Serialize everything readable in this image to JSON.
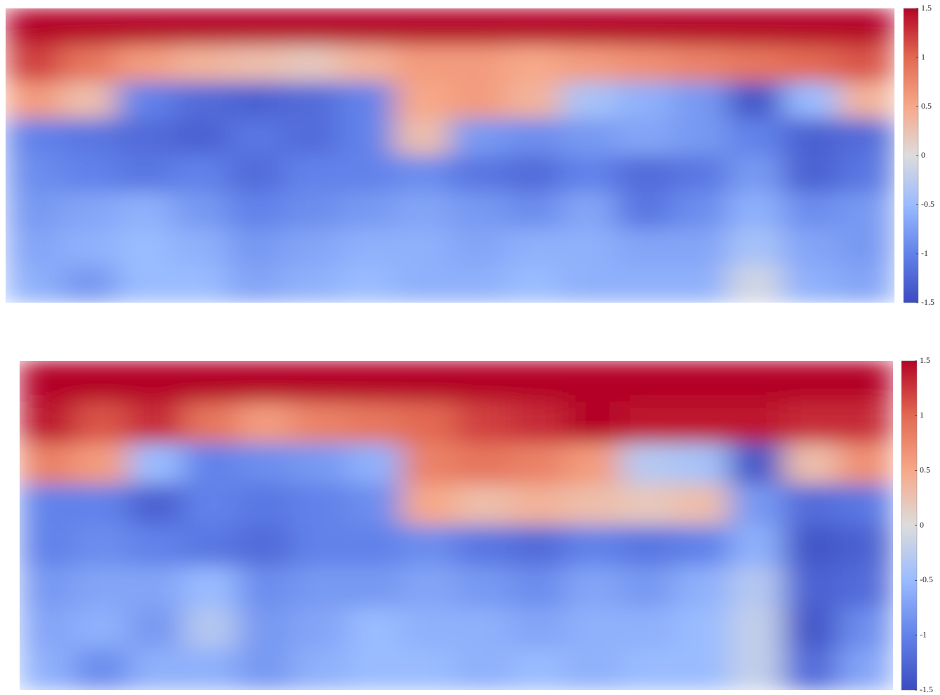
{
  "chart_data": [
    {
      "type": "heatmap",
      "zlim": [
        -1.5,
        1.5
      ],
      "zticks": [
        1.5,
        1,
        0.5,
        0,
        -0.5,
        -1,
        -1.5
      ],
      "colormap": [
        "#3b4cc0",
        "#6282ea",
        "#9abbff",
        "#dddcdc",
        "#f7a889",
        "#e26952",
        "#b40426"
      ],
      "z": [
        [
          1.5,
          1.5,
          1.5,
          1.5,
          1.5,
          1.5,
          1.5,
          1.5,
          1.5,
          1.5,
          1.5,
          1.5,
          1.5,
          1.5,
          1.5,
          1.5
        ],
        [
          1.2,
          0.9,
          0.6,
          0.4,
          0.3,
          0.2,
          0.4,
          0.6,
          0.6,
          0.5,
          0.6,
          0.7,
          0.8,
          0.9,
          1.0,
          1.1
        ],
        [
          0.6,
          0.3,
          -1.0,
          -1.2,
          -1.3,
          -1.2,
          -1.0,
          0.5,
          0.6,
          0.4,
          -0.4,
          -0.6,
          -0.8,
          -1.4,
          -0.5,
          0.4
        ],
        [
          -1.0,
          -1.1,
          -1.2,
          -1.3,
          -1.1,
          -1.2,
          -1.0,
          0.3,
          -0.8,
          -0.9,
          -0.8,
          -0.7,
          -0.8,
          -1.0,
          -1.3,
          -1.2
        ],
        [
          -0.9,
          -1.0,
          -1.1,
          -1.0,
          -1.2,
          -1.0,
          -1.0,
          -0.9,
          -1.1,
          -1.2,
          -1.0,
          -1.2,
          -1.1,
          -0.8,
          -1.3,
          -1.1
        ],
        [
          -0.8,
          -0.7,
          -0.6,
          -0.8,
          -1.0,
          -0.9,
          -0.8,
          -0.7,
          -0.8,
          -0.9,
          -0.7,
          -1.1,
          -0.9,
          -0.6,
          -0.9,
          -0.8
        ],
        [
          -0.7,
          -0.6,
          -0.5,
          -0.6,
          -0.8,
          -0.7,
          -0.6,
          -0.6,
          -0.7,
          -0.6,
          -0.6,
          -0.7,
          -0.7,
          -0.4,
          -0.7,
          -0.8
        ],
        [
          -0.6,
          -0.8,
          -0.5,
          -0.5,
          -0.7,
          -0.6,
          -0.5,
          -0.6,
          -0.6,
          -0.5,
          -0.6,
          -0.6,
          -0.6,
          -0.1,
          -0.6,
          -0.7
        ]
      ]
    },
    {
      "type": "heatmap",
      "zlim": [
        -1.5,
        1.5
      ],
      "zticks": [
        1.5,
        1,
        0.5,
        0,
        -0.5,
        -1,
        -1.5
      ],
      "colormap": [
        "#3b4cc0",
        "#6282ea",
        "#9abbff",
        "#dddcdc",
        "#f7a889",
        "#e26952",
        "#b40426"
      ],
      "z": [
        [
          1.5,
          1.5,
          1.5,
          1.5,
          1.5,
          1.5,
          1.5,
          1.5,
          1.5,
          1.5,
          1.5,
          1.5,
          1.5,
          1.5,
          1.5,
          1.5
        ],
        [
          1.4,
          1.1,
          1.3,
          0.9,
          0.6,
          0.8,
          0.9,
          1.0,
          1.2,
          1.3,
          1.5,
          1.4,
          1.4,
          1.4,
          1.3,
          1.3
        ],
        [
          0.8,
          0.6,
          -0.5,
          -1.0,
          -0.9,
          -0.8,
          -0.6,
          0.8,
          0.9,
          0.8,
          0.6,
          -0.3,
          -0.4,
          -1.4,
          0.3,
          0.7
        ],
        [
          -1.0,
          -1.0,
          -1.3,
          -1.0,
          -1.1,
          -1.0,
          -0.9,
          0.5,
          0.3,
          0.4,
          0.3,
          0.2,
          0.3,
          -0.8,
          -1.2,
          -1.1
        ],
        [
          -1.0,
          -0.9,
          -1.0,
          -1.1,
          -1.2,
          -1.0,
          -1.0,
          -0.9,
          -1.1,
          -1.2,
          -1.0,
          -1.1,
          -1.0,
          -0.6,
          -1.4,
          -1.3
        ],
        [
          -0.8,
          -0.7,
          -0.7,
          -0.5,
          -0.9,
          -0.8,
          -0.8,
          -0.7,
          -0.8,
          -0.9,
          -0.7,
          -0.8,
          -0.6,
          -0.3,
          -1.3,
          -1.2
        ],
        [
          -0.7,
          -0.6,
          -0.8,
          -0.3,
          -0.8,
          -0.7,
          -0.5,
          -0.6,
          -0.6,
          -0.7,
          -0.6,
          -0.6,
          -0.5,
          -0.2,
          -1.4,
          -0.9
        ],
        [
          -0.6,
          -0.9,
          -0.6,
          -0.6,
          -0.8,
          -0.6,
          -0.5,
          -0.5,
          -0.6,
          -0.5,
          -0.6,
          -0.5,
          -0.5,
          -0.2,
          -1.2,
          -0.7
        ]
      ]
    }
  ]
}
